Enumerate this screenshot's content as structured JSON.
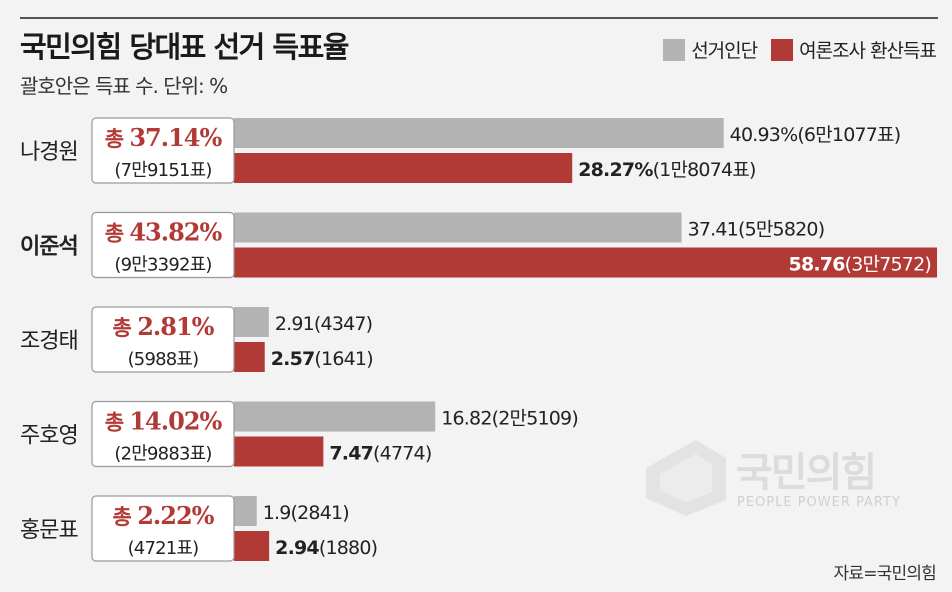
{
  "header": {
    "title": "국민의힘 당대표 선거 득표율",
    "subtitle": "괄호안은 득표 수. 단위: %"
  },
  "legend": [
    {
      "label": "선거인단",
      "color": "#b3b3b3"
    },
    {
      "label": "여론조사 환산득표",
      "color": "#b23a36"
    }
  ],
  "source": "자료=국민의힘",
  "watermark": {
    "name": "국민의힘",
    "tagline": "PEOPLE POWER PARTY"
  },
  "colors": {
    "delegate": "#b3b3b3",
    "poll": "#b23a36",
    "accent_text": "#b23a36"
  },
  "chart_data": {
    "type": "bar",
    "orientation": "horizontal",
    "categories": [
      "나경원",
      "이준석",
      "조경태",
      "주호영",
      "홍문표"
    ],
    "highlight_category": "이준석",
    "totals": [
      {
        "label": "총 37.14%",
        "votes": "(7만9151표)",
        "value": 37.14
      },
      {
        "label": "총 43.82%",
        "votes": "(9만3392표)",
        "value": 43.82
      },
      {
        "label": "총 2.81%",
        "votes": "(5988표)",
        "value": 2.81
      },
      {
        "label": "총 14.02%",
        "votes": "(2만9883표)",
        "value": 14.02
      },
      {
        "label": "총 2.22%",
        "votes": "(4721표)",
        "value": 2.22
      }
    ],
    "series": [
      {
        "name": "선거인단",
        "values": [
          40.93,
          37.41,
          2.91,
          16.82,
          1.9
        ],
        "value_labels": [
          "40.93%",
          "37.41",
          "2.91",
          "16.82",
          "1.9"
        ],
        "vote_labels": [
          "(6만1077표)",
          "(5만5820)",
          "(4347)",
          "(2만5109)",
          "(2841)"
        ]
      },
      {
        "name": "여론조사 환산득표",
        "values": [
          28.27,
          58.76,
          2.57,
          7.47,
          2.94
        ],
        "value_labels": [
          "28.27%",
          "58.76",
          "2.57",
          "7.47",
          "2.94"
        ],
        "vote_labels": [
          "(1만8074표)",
          "(3만7572)",
          "(1641)",
          "(4774)",
          "(1880)"
        ]
      }
    ],
    "xlim": [
      0,
      58.76
    ]
  }
}
